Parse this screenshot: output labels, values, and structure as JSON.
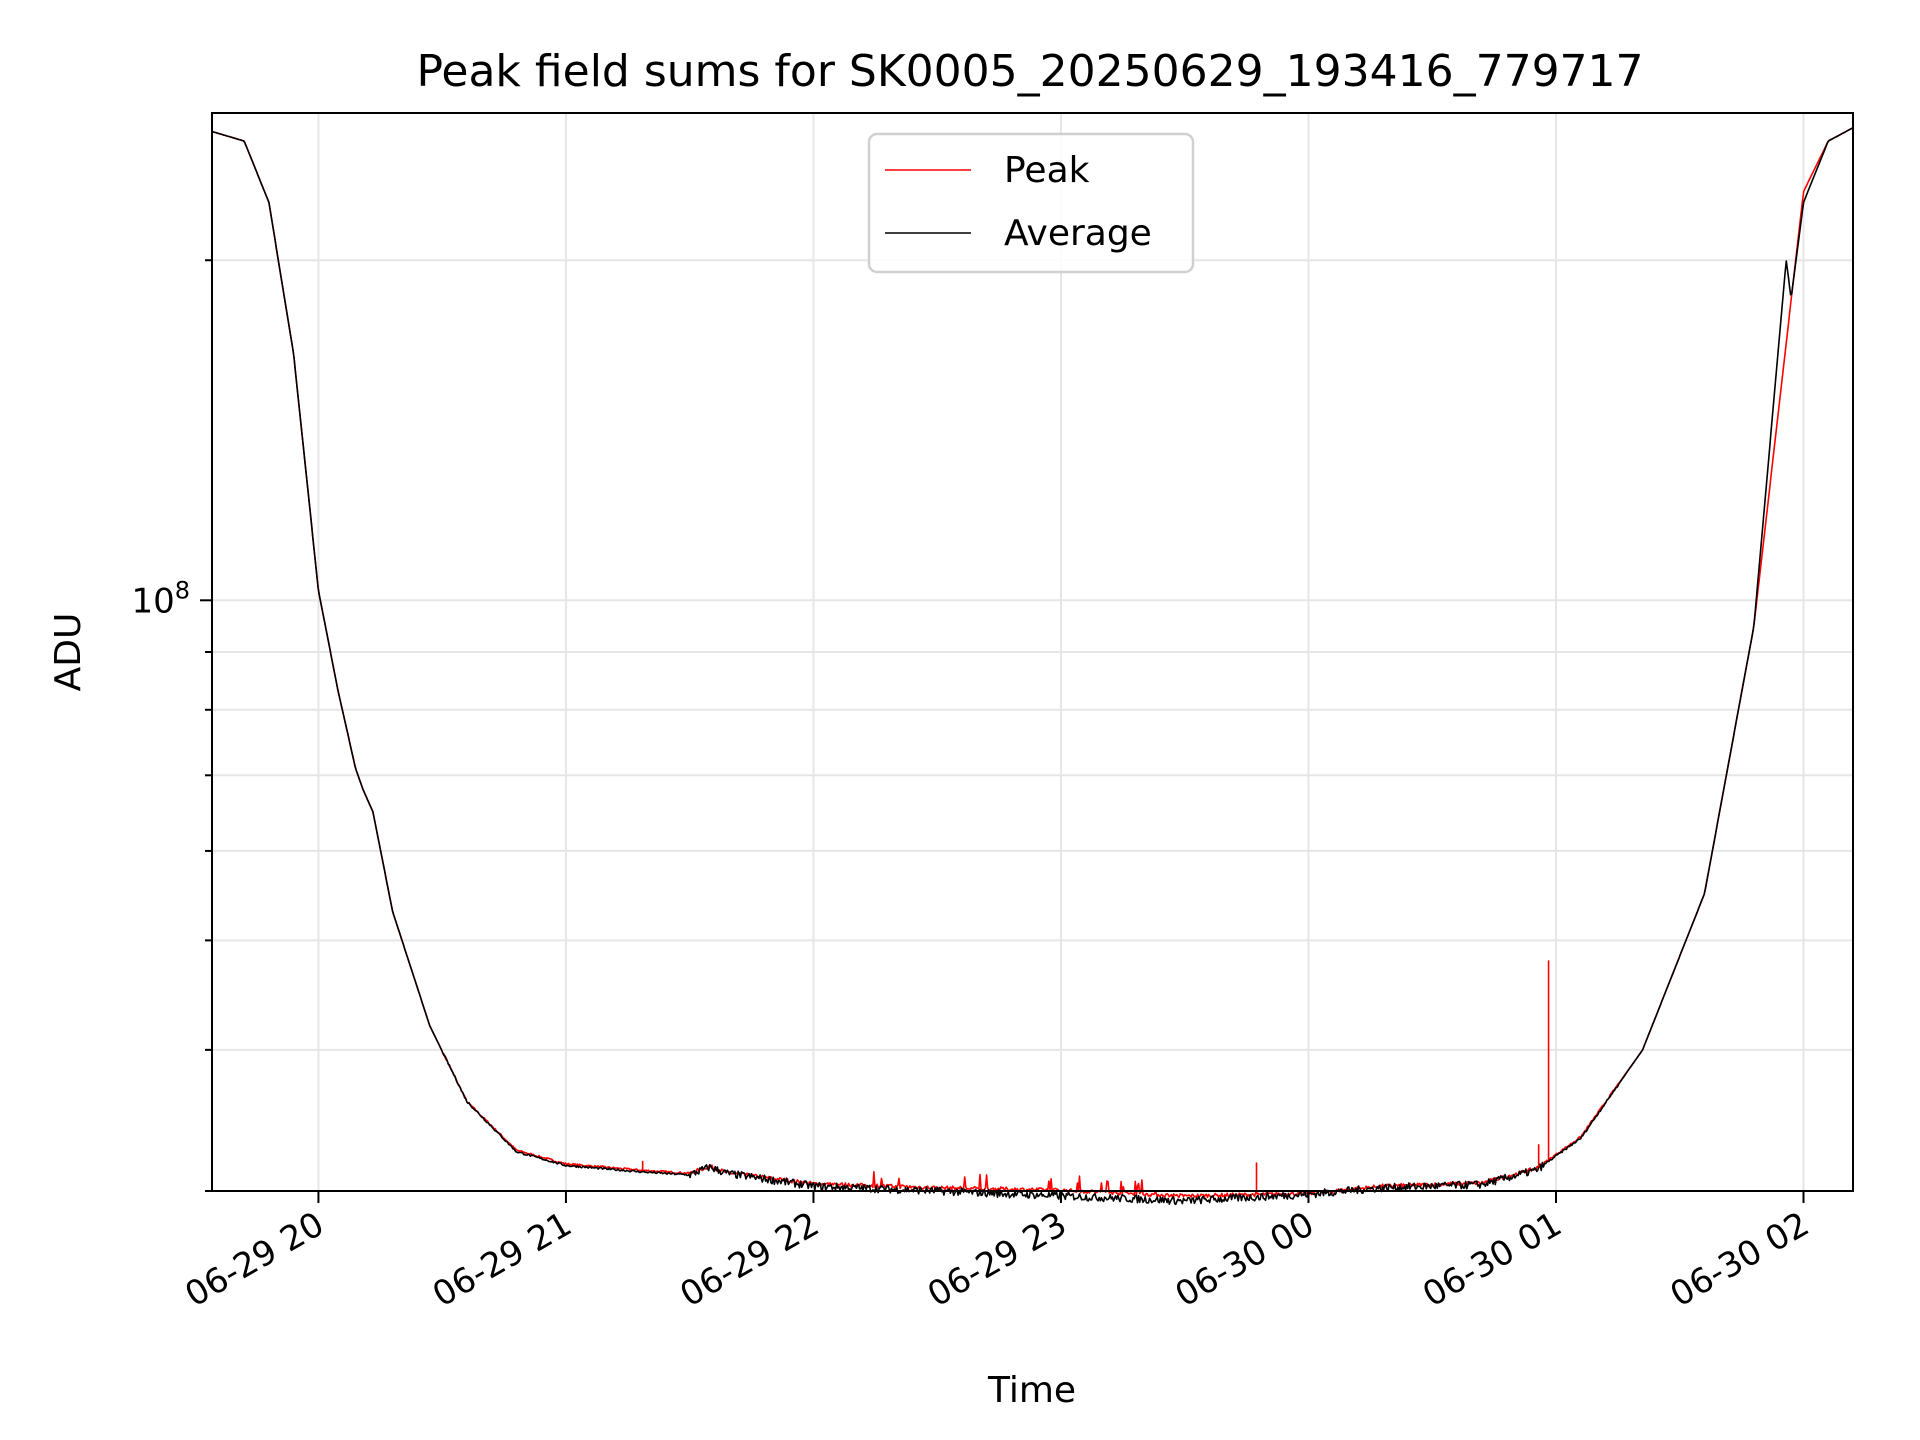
{
  "chart_data": {
    "type": "line",
    "title": "Peak field sums for SK0005_20250629_193416_779717",
    "xlabel": "Time",
    "ylabel": "ADU",
    "y_scale": "log",
    "y_tick_label": {
      "base": "10",
      "exponent": "8",
      "value": 100000000
    },
    "x_ticks": [
      "06-29 20",
      "06-29 21",
      "06-29 22",
      "06-29 23",
      "06-30 00",
      "06-30 01",
      "06-30 02"
    ],
    "x_range_hours_from_0629_20": [
      -0.43,
      6.2
    ],
    "ylim": [
      30000000,
      270000000
    ],
    "grid": true,
    "legend": {
      "position": "top-center",
      "entries": [
        "Peak",
        "Average"
      ]
    },
    "series": [
      {
        "name": "Peak",
        "color": "#ff0000",
        "x_hours_from_0629_20": [
          -0.43,
          -0.3,
          -0.2,
          -0.1,
          0.0,
          0.08,
          0.15,
          0.18,
          0.22,
          0.3,
          0.45,
          0.6,
          0.8,
          1.0,
          1.3,
          1.5,
          1.58,
          1.65,
          2.0,
          2.5,
          3.0,
          3.5,
          4.0,
          4.3,
          4.7,
          4.92,
          5.1,
          5.35,
          5.6,
          5.8,
          6.0,
          6.1,
          6.2
        ],
        "values": [
          260000000,
          255000000,
          225000000,
          165000000,
          102000000,
          83000000,
          71000000,
          68000000,
          65000000,
          53000000,
          42000000,
          36000000,
          32600000,
          31700000,
          31300000,
          31100000,
          31550000,
          31150000,
          30450000,
          30200000,
          30050000,
          29700000,
          29850000,
          30300000,
          30500000,
          31400000,
          33500000,
          40000000,
          55000000,
          95000000,
          230000000,
          255000000,
          262000000
        ]
      },
      {
        "name": "Average",
        "color": "#000000",
        "x_hours_from_0629_20": [
          -0.43,
          -0.3,
          -0.2,
          -0.1,
          0.0,
          0.08,
          0.15,
          0.18,
          0.22,
          0.3,
          0.45,
          0.6,
          0.8,
          1.0,
          1.3,
          1.5,
          1.58,
          1.65,
          2.0,
          2.5,
          3.0,
          3.5,
          4.0,
          4.3,
          4.7,
          4.92,
          5.1,
          5.35,
          5.6,
          5.8,
          5.93,
          5.95,
          6.0,
          6.1,
          6.2
        ],
        "values": [
          260000000,
          255000000,
          225000000,
          165000000,
          102000000,
          83000000,
          71000000,
          68000000,
          65000000,
          53000000,
          42000000,
          36000000,
          32500000,
          31600000,
          31200000,
          31000000,
          31500000,
          31100000,
          30300000,
          30000000,
          29700000,
          29400000,
          29800000,
          30200000,
          30400000,
          31300000,
          33400000,
          40000000,
          55000000,
          95000000,
          200000000,
          185000000,
          225000000,
          255000000,
          262000000
        ]
      }
    ],
    "annotations": {
      "peak_spikes": [
        {
          "x_hour": 4.97,
          "value": 48000000
        },
        {
          "x_hour": 4.93,
          "value": 33000000
        },
        {
          "x_hour": 3.79,
          "value": 31800000
        },
        {
          "x_hour": 1.31,
          "value": 31900000
        }
      ]
    }
  }
}
